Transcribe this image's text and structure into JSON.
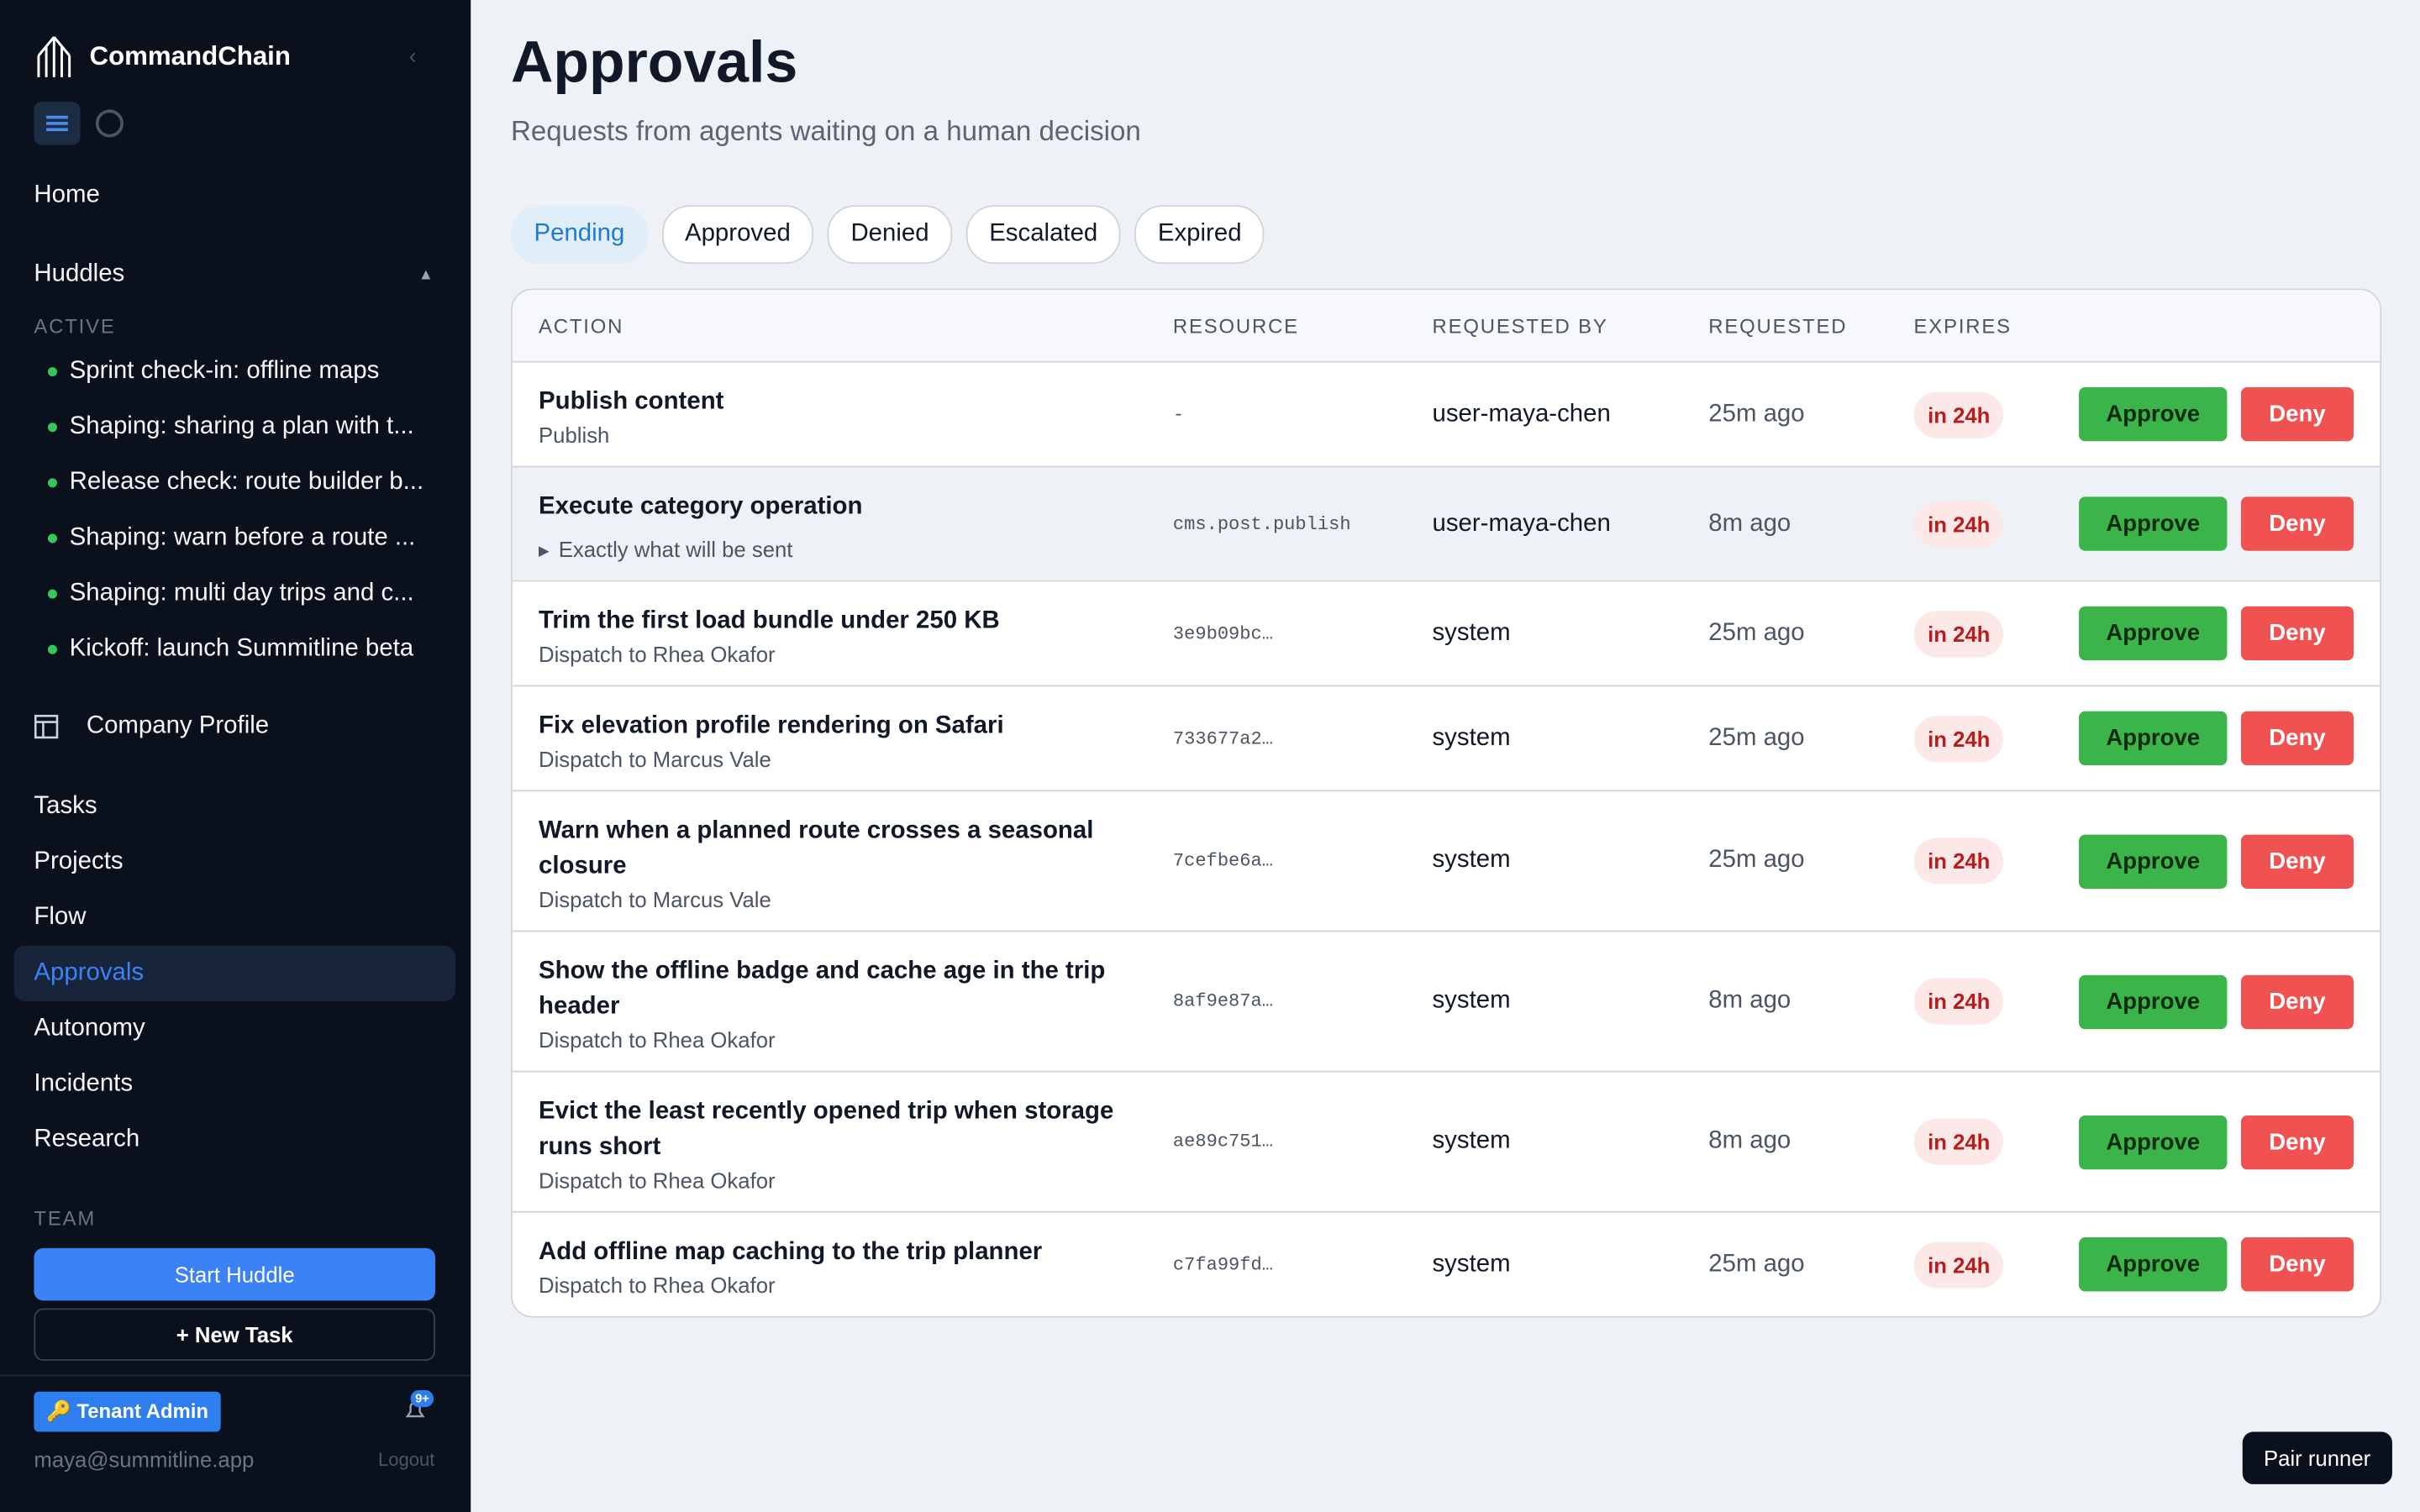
{
  "sidebar": {
    "brand": "CommandChain",
    "home": "Home",
    "huddles": {
      "label": "Huddles",
      "toggle": "▲",
      "section": "ACTIVE",
      "items": [
        "Sprint check-in: offline maps",
        "Shaping: sharing a plan with t...",
        "Release check: route builder b...",
        "Shaping: warn before a route ...",
        "Shaping: multi day trips and c...",
        "Kickoff: launch Summitline beta"
      ]
    },
    "company_profile": "Company Profile",
    "nav": [
      "Tasks",
      "Projects",
      "Flow",
      "Approvals",
      "Autonomy",
      "Incidents",
      "Research"
    ],
    "active_nav": 3,
    "team_label": "TEAM",
    "start_huddle": "Start Huddle",
    "new_task": "+ New Task",
    "role_badge": "🔑 Tenant Admin",
    "notification_count": "9+",
    "user_email": "maya@summitline.app",
    "logout": "Logout"
  },
  "header": {
    "title": "Approvals",
    "subtitle": "Requests from agents waiting on a human decision"
  },
  "tabs": {
    "items": [
      "Pending",
      "Approved",
      "Denied",
      "Escalated",
      "Expired"
    ],
    "active": 0
  },
  "table": {
    "columns": [
      "ACTION",
      "RESOURCE",
      "REQUESTED BY",
      "REQUESTED",
      "EXPIRES"
    ],
    "approve_label": "Approve",
    "deny_label": "Deny",
    "rows": [
      {
        "title": "Publish content",
        "subtitle": "Publish",
        "resource": "-",
        "requested_by": "user-maya-chen",
        "requested": "25m ago",
        "expires": "in 24h"
      },
      {
        "title": "Execute category operation",
        "details": "Exactly what will be sent",
        "resource": "cms.post.publish",
        "requested_by": "user-maya-chen",
        "requested": "8m ago",
        "expires": "in 24h"
      },
      {
        "title": "Trim the first load bundle under 250 KB",
        "subtitle": "Dispatch to Rhea Okafor",
        "resource": "3e9b09bc…",
        "requested_by": "system",
        "requested": "25m ago",
        "expires": "in 24h"
      },
      {
        "title": "Fix elevation profile rendering on Safari",
        "subtitle": "Dispatch to Marcus Vale",
        "resource": "733677a2…",
        "requested_by": "system",
        "requested": "25m ago",
        "expires": "in 24h"
      },
      {
        "title": "Warn when a planned route crosses a seasonal closure",
        "subtitle": "Dispatch to Marcus Vale",
        "resource": "7cefbe6a…",
        "requested_by": "system",
        "requested": "25m ago",
        "expires": "in 24h"
      },
      {
        "title": "Show the offline badge and cache age in the trip header",
        "subtitle": "Dispatch to Rhea Okafor",
        "resource": "8af9e87a…",
        "requested_by": "system",
        "requested": "8m ago",
        "expires": "in 24h"
      },
      {
        "title": "Evict the least recently opened trip when storage runs short",
        "subtitle": "Dispatch to Rhea Okafor",
        "resource": "ae89c751…",
        "requested_by": "system",
        "requested": "8m ago",
        "expires": "in 24h"
      },
      {
        "title": "Add offline map caching to the trip planner",
        "subtitle": "Dispatch to Rhea Okafor",
        "resource": "c7fa99fd…",
        "requested_by": "system",
        "requested": "25m ago",
        "expires": "in 24h"
      }
    ]
  },
  "pair_runner": "Pair runner"
}
